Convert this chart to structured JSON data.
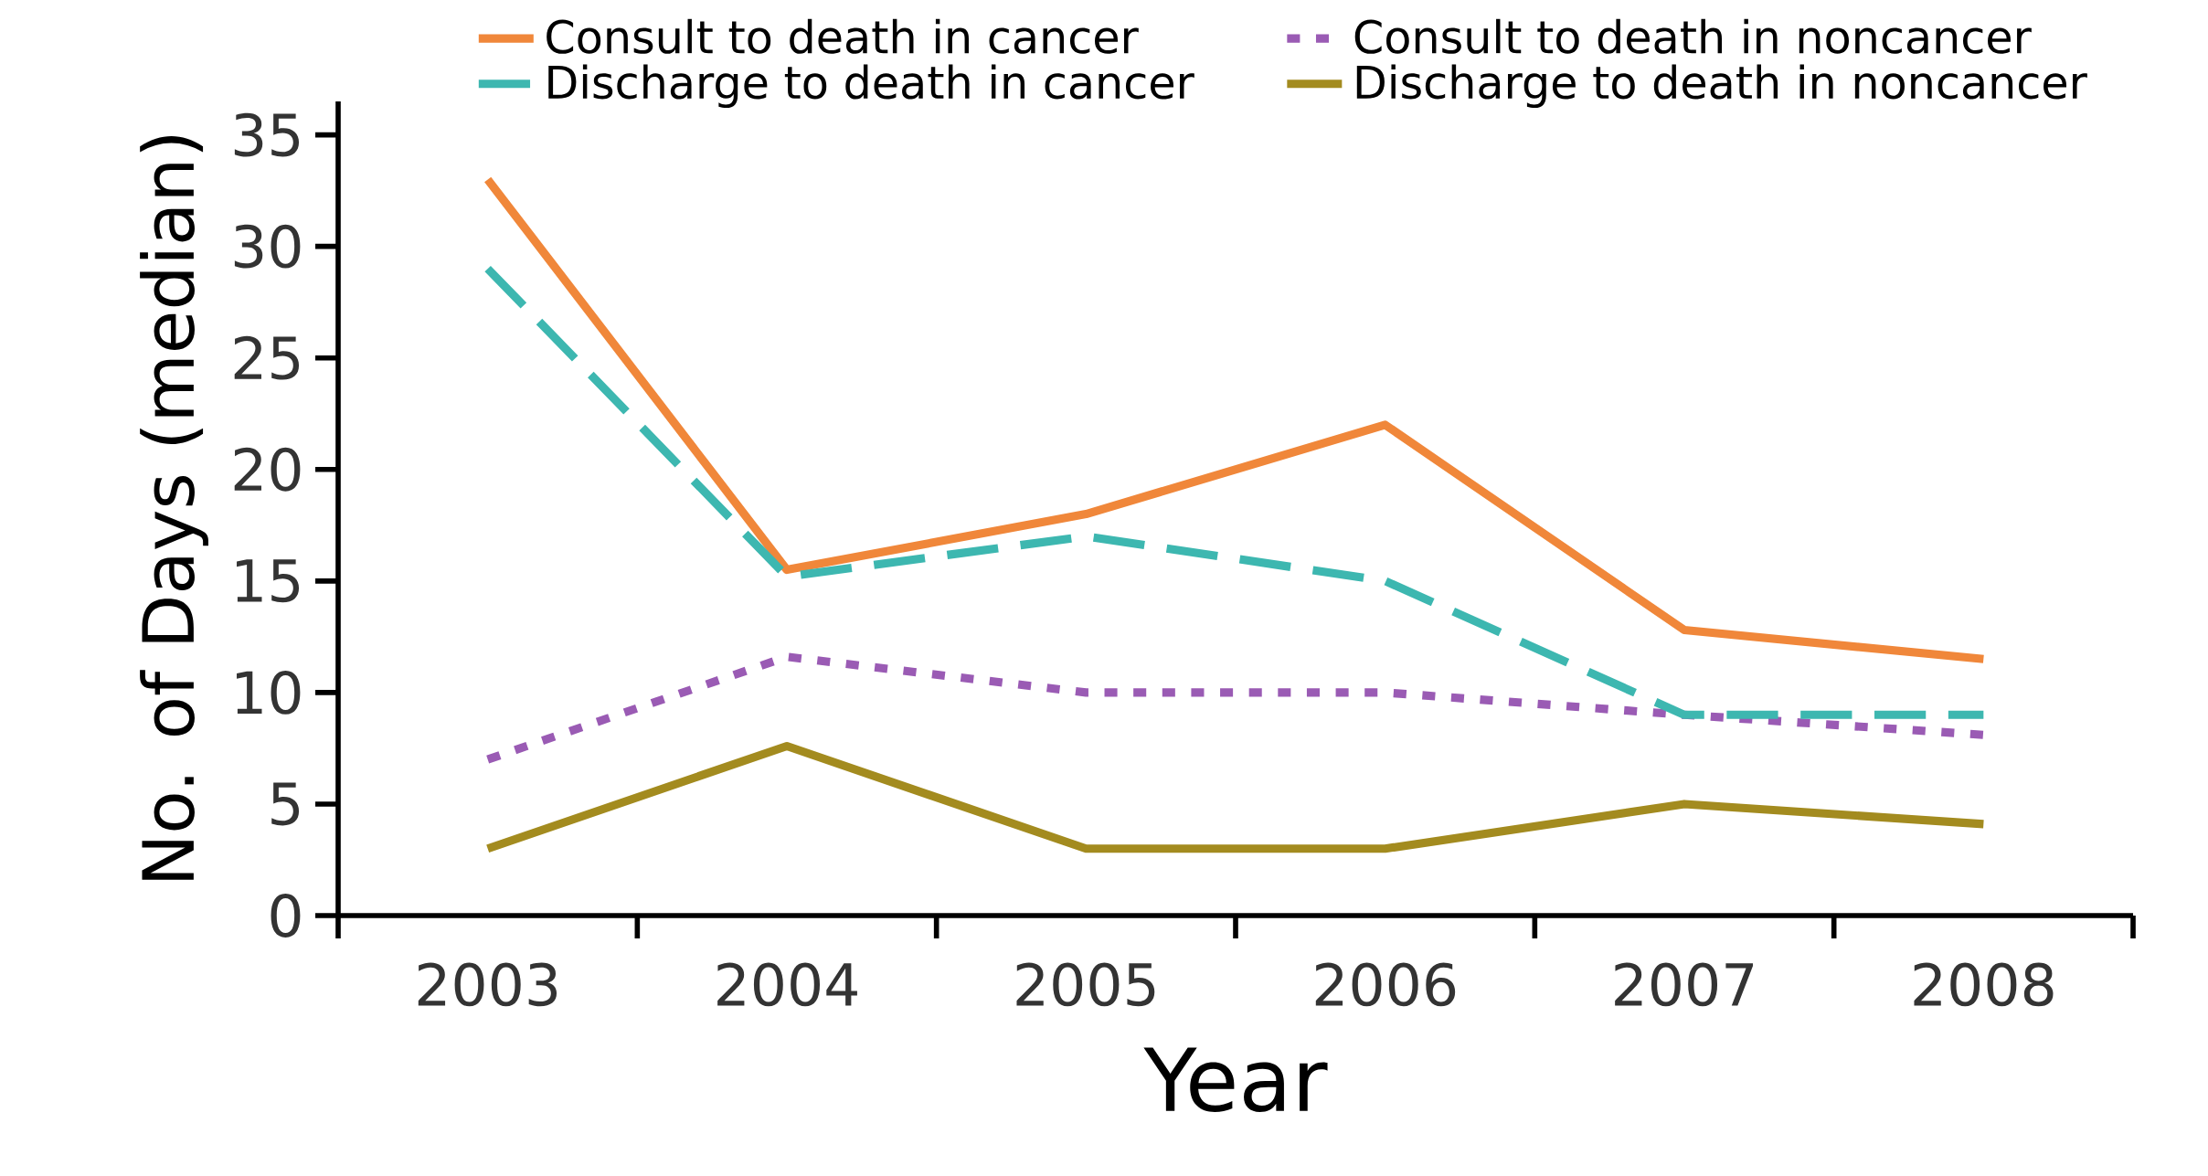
{
  "chart_data": {
    "type": "line",
    "xlabel": "Year",
    "ylabel": "No. of Days (median)",
    "categories": [
      "2003",
      "2004",
      "2005",
      "2006",
      "2007",
      "2008"
    ],
    "ylim": [
      0,
      36.5
    ],
    "yticks": [
      0,
      5,
      10,
      15,
      20,
      25,
      30,
      35
    ],
    "legend": "top",
    "marker": "none",
    "series": [
      {
        "name": "Consult to death in cancer",
        "color": "#f0873a",
        "line_style": "solid",
        "values": [
          33,
          15.5,
          18,
          22,
          12.8,
          11.5
        ]
      },
      {
        "name": "Consult to death in noncancer",
        "color": "#9a5bb4",
        "line_style": "dotted",
        "values": [
          7,
          11.6,
          10,
          10,
          9,
          8.1
        ]
      },
      {
        "name": "Discharge to death in cancer",
        "color": "#3db7b0",
        "line_style": "dashed",
        "values": [
          29,
          15.2,
          17,
          15,
          9,
          9
        ]
      },
      {
        "name": "Discharge to death in noncancer",
        "color": "#a38b1f",
        "line_style": "solid",
        "values": [
          3,
          7.6,
          3,
          3,
          5,
          4.1
        ]
      }
    ]
  }
}
